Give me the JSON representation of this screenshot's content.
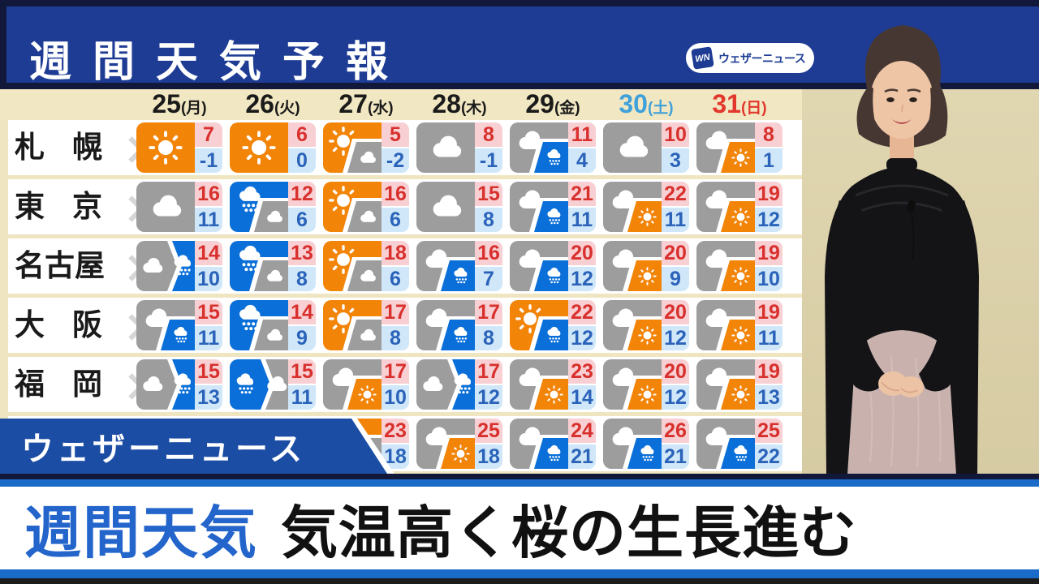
{
  "program": {
    "title": "週間天気予報"
  },
  "logo": {
    "mark": "WN",
    "name": "ウェザーニュース"
  },
  "banner": {
    "label": "ウェザーニュース"
  },
  "headline": {
    "tag": "週間天気",
    "text": "気温高く桜の生長進む"
  },
  "date_header": {
    "days": [
      {
        "num": "25",
        "wk": "(月)",
        "type": "weekday"
      },
      {
        "num": "26",
        "wk": "(火)",
        "type": "weekday"
      },
      {
        "num": "27",
        "wk": "(水)",
        "type": "weekday"
      },
      {
        "num": "28",
        "wk": "(木)",
        "type": "weekday"
      },
      {
        "num": "29",
        "wk": "(金)",
        "type": "weekday"
      },
      {
        "num": "30",
        "wk": "(土)",
        "type": "saturday"
      },
      {
        "num": "31",
        "wk": "(日)",
        "type": "sunday"
      }
    ]
  },
  "chart_data": {
    "type": "table",
    "title": "週間天気予報",
    "columns": [
      "25(月)",
      "26(火)",
      "27(水)",
      "28(木)",
      "29(金)",
      "30(土)",
      "31(日)"
    ],
    "unit": "degrees C, high over low",
    "rows": [
      {
        "city": "札幌",
        "cells": [
          {
            "weather": "sunny",
            "high": 7,
            "low": -1
          },
          {
            "weather": "sunny",
            "high": 6,
            "low": 0
          },
          {
            "weather": "sunny-then-cloudy",
            "high": 5,
            "low": -2
          },
          {
            "weather": "cloudy",
            "high": 8,
            "low": -1
          },
          {
            "weather": "cloudy-then-rain",
            "high": 11,
            "low": 4
          },
          {
            "weather": "cloudy",
            "high": 10,
            "low": 3
          },
          {
            "weather": "cloudy-then-sunny",
            "high": 8,
            "low": 1
          }
        ]
      },
      {
        "city": "東京",
        "cells": [
          {
            "weather": "cloudy",
            "high": 16,
            "low": 11
          },
          {
            "weather": "rain-then-cloudy",
            "high": 12,
            "low": 6
          },
          {
            "weather": "sunny-then-cloudy",
            "high": 16,
            "low": 6
          },
          {
            "weather": "cloudy",
            "high": 15,
            "low": 8
          },
          {
            "weather": "cloudy-then-rain",
            "high": 21,
            "low": 11
          },
          {
            "weather": "cloudy-then-sunny",
            "high": 22,
            "low": 11
          },
          {
            "weather": "cloudy-then-sunny",
            "high": 19,
            "low": 12
          }
        ]
      },
      {
        "city": "名古屋",
        "cells": [
          {
            "weather": "cloudy-then-rain-arrow",
            "high": 14,
            "low": 10
          },
          {
            "weather": "rain-then-cloudy",
            "high": 13,
            "low": 8
          },
          {
            "weather": "sunny-then-cloudy",
            "high": 18,
            "low": 6
          },
          {
            "weather": "cloudy-then-rain",
            "high": 16,
            "low": 7
          },
          {
            "weather": "cloudy-then-rain",
            "high": 20,
            "low": 12
          },
          {
            "weather": "cloudy-then-sunny",
            "high": 20,
            "low": 9
          },
          {
            "weather": "cloudy-then-sunny",
            "high": 19,
            "low": 10
          }
        ]
      },
      {
        "city": "大阪",
        "cells": [
          {
            "weather": "cloudy-then-rain",
            "high": 15,
            "low": 11
          },
          {
            "weather": "rain-then-cloudy",
            "high": 14,
            "low": 9
          },
          {
            "weather": "sunny-then-cloudy",
            "high": 17,
            "low": 8
          },
          {
            "weather": "cloudy-then-rain",
            "high": 17,
            "low": 8
          },
          {
            "weather": "sunny-then-rain",
            "high": 22,
            "low": 12
          },
          {
            "weather": "cloudy-then-sunny",
            "high": 20,
            "low": 12
          },
          {
            "weather": "cloudy-then-sunny",
            "high": 19,
            "low": 11
          }
        ]
      },
      {
        "city": "福岡",
        "cells": [
          {
            "weather": "cloudy-then-rain-arrow",
            "high": 15,
            "low": 13
          },
          {
            "weather": "rain-then-cloudy-arrow",
            "high": 15,
            "low": 11
          },
          {
            "weather": "cloudy-then-sunny",
            "high": 17,
            "low": 10
          },
          {
            "weather": "cloudy-then-rain-arrow",
            "high": 17,
            "low": 12
          },
          {
            "weather": "cloudy-then-sunny",
            "high": 23,
            "low": 14
          },
          {
            "weather": "cloudy-then-sunny",
            "high": 20,
            "low": 12
          },
          {
            "weather": "cloudy-then-sunny",
            "high": 19,
            "low": 13
          }
        ]
      },
      {
        "city": "",
        "cells": [
          null,
          null,
          {
            "weather": "sunny-then-cloudy",
            "high": 23,
            "low": 18
          },
          {
            "weather": "cloudy-then-sunny",
            "high": 25,
            "low": 18
          },
          {
            "weather": "cloudy-then-rain",
            "high": 24,
            "low": 21
          },
          {
            "weather": "cloudy-then-rain",
            "high": 26,
            "low": 21
          },
          {
            "weather": "cloudy-then-rain",
            "high": 25,
            "low": 22
          }
        ]
      }
    ]
  },
  "icon_styles": {
    "sunny": {
      "style": "single",
      "a": "sun"
    },
    "cloudy": {
      "style": "single",
      "a": "cloud"
    },
    "sunny-then-cloudy": {
      "style": "inset",
      "a": "sun",
      "b": "cloud"
    },
    "cloudy-then-sunny": {
      "style": "inset",
      "a": "cloud",
      "b": "sun"
    },
    "cloudy-then-rain": {
      "style": "inset",
      "a": "cloud",
      "b": "rain"
    },
    "rain-then-cloudy": {
      "style": "inset",
      "a": "rain",
      "b": "cloud"
    },
    "sunny-then-rain": {
      "style": "inset",
      "a": "sun",
      "b": "rain"
    },
    "cloudy-then-rain-arrow": {
      "style": "split",
      "a": "cloud",
      "b": "rain"
    },
    "rain-then-cloudy-arrow": {
      "style": "split",
      "a": "rain",
      "b": "cloud"
    }
  },
  "colors": {
    "header_blue": "#1e3c94",
    "frame_navy": "#11183a",
    "date_band": "#f1e7c2",
    "wall_beige": "#dcd2aa",
    "sun": "#f28408",
    "cloud": "#9d9d9d",
    "rain": "#0a6fd8",
    "high_text": "#d8302d",
    "high_bg": "#f8d0d3",
    "low_text": "#2b63ba",
    "low_bg": "#cfe7f8",
    "weekday": "#1a1a1a",
    "saturday": "#3fa0da",
    "sunday": "#e2372c",
    "banner_blue": "#1c4da4",
    "headline_tag": "#2465cc",
    "headline_text": "#111111",
    "headline_border": "#1a6cc8"
  }
}
